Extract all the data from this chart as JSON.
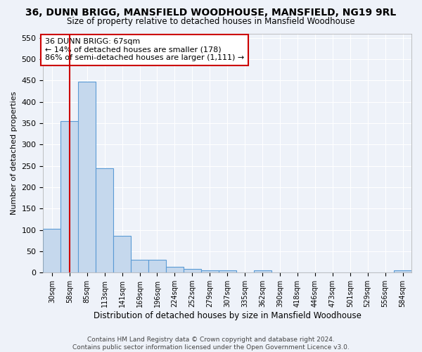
{
  "title": "36, DUNN BRIGG, MANSFIELD WOODHOUSE, MANSFIELD, NG19 9RL",
  "subtitle": "Size of property relative to detached houses in Mansfield Woodhouse",
  "xlabel": "Distribution of detached houses by size in Mansfield Woodhouse",
  "ylabel": "Number of detached properties",
  "footer_line1": "Contains HM Land Registry data © Crown copyright and database right 2024.",
  "footer_line2": "Contains public sector information licensed under the Open Government Licence v3.0.",
  "bin_labels": [
    "30sqm",
    "58sqm",
    "85sqm",
    "113sqm",
    "141sqm",
    "169sqm",
    "196sqm",
    "224sqm",
    "252sqm",
    "279sqm",
    "307sqm",
    "335sqm",
    "362sqm",
    "390sqm",
    "418sqm",
    "446sqm",
    "473sqm",
    "501sqm",
    "529sqm",
    "556sqm",
    "584sqm"
  ],
  "bar_values": [
    103,
    355,
    447,
    244,
    86,
    30,
    30,
    13,
    8,
    5,
    5,
    0,
    5,
    0,
    0,
    0,
    0,
    0,
    0,
    0,
    5
  ],
  "bar_color": "#c5d8ed",
  "bar_edge_color": "#5b9bd5",
  "annotation_text": "36 DUNN BRIGG: 67sqm\n← 14% of detached houses are smaller (178)\n86% of semi-detached houses are larger (1,111) →",
  "vline_x": 1.0,
  "ylim": [
    0,
    560
  ],
  "yticks": [
    0,
    50,
    100,
    150,
    200,
    250,
    300,
    350,
    400,
    450,
    500,
    550
  ],
  "background_color": "#eef2f9",
  "grid_color": "#ffffff",
  "annotation_box_color": "#ffffff",
  "annotation_box_edge": "#cc0000",
  "vline_color": "#cc0000"
}
